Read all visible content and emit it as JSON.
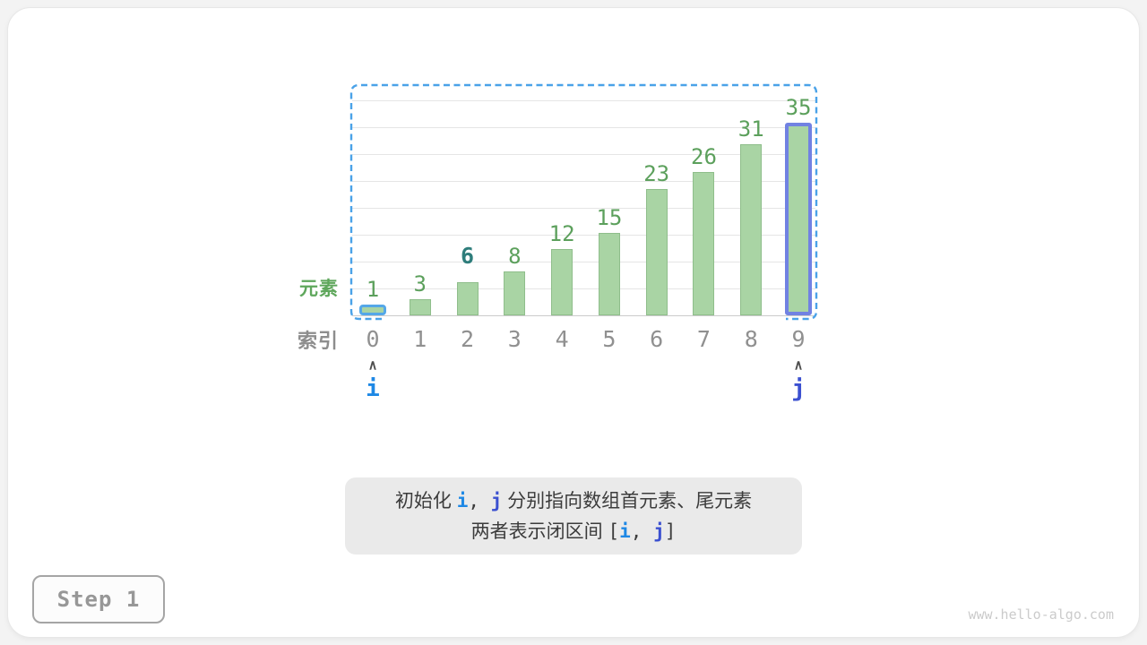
{
  "meta": {
    "step_label": "Step 1",
    "watermark": "www.hello-algo.com"
  },
  "chart_data": {
    "type": "bar",
    "title": "",
    "xlabel": "索引",
    "ylabel": "元素",
    "categories": [
      "0",
      "1",
      "2",
      "3",
      "4",
      "5",
      "6",
      "7",
      "8",
      "9"
    ],
    "values": [
      1,
      3,
      6,
      8,
      12,
      15,
      23,
      26,
      31,
      35
    ],
    "ylim": [
      0,
      40
    ],
    "grid": "horizontal",
    "grid_step_units": 5,
    "legend": "none",
    "annotations": {
      "target": {
        "index": 2,
        "value": 6
      },
      "pointer_i": {
        "index": 0,
        "label": "i"
      },
      "pointer_j": {
        "index": 9,
        "label": "j"
      },
      "selection_box": "dashed rounded rectangle spanning indices 0 through 9"
    }
  },
  "pointers": {
    "caret_glyph": "∧",
    "i_label": "i",
    "j_label": "j"
  },
  "caption": {
    "line1": [
      {
        "c": "plain",
        "t": "初始化 "
      },
      {
        "c": "i",
        "t": "i"
      },
      {
        "c": "plain-mono",
        "t": ", "
      },
      {
        "c": "j",
        "t": "j"
      },
      {
        "c": "plain",
        "t": " 分别指向数组首元素、尾元素"
      }
    ],
    "line2": [
      {
        "c": "plain",
        "t": "两者表示闭区间 "
      },
      {
        "c": "plain-mono",
        "t": "["
      },
      {
        "c": "i",
        "t": "i"
      },
      {
        "c": "plain-mono",
        "t": ", "
      },
      {
        "c": "j",
        "t": "j"
      },
      {
        "c": "plain-mono",
        "t": "]"
      }
    ]
  },
  "colors": {
    "bar_fill": "#a9d4a4",
    "bar_edge": "#8fbe8b",
    "value_green": "#5ca05c",
    "target_teal": "#2e7d7b",
    "i_blue": "#1e88e5",
    "i_bar_border": "#54a7e8",
    "j_indigo": "#3b50d0",
    "j_bar_border": "#7182e2",
    "selection_dash_blue": "#4aa2e8",
    "index_gray": "#909090",
    "caption_bg": "#eaeaea",
    "caption_text": "#3c3c3c"
  }
}
